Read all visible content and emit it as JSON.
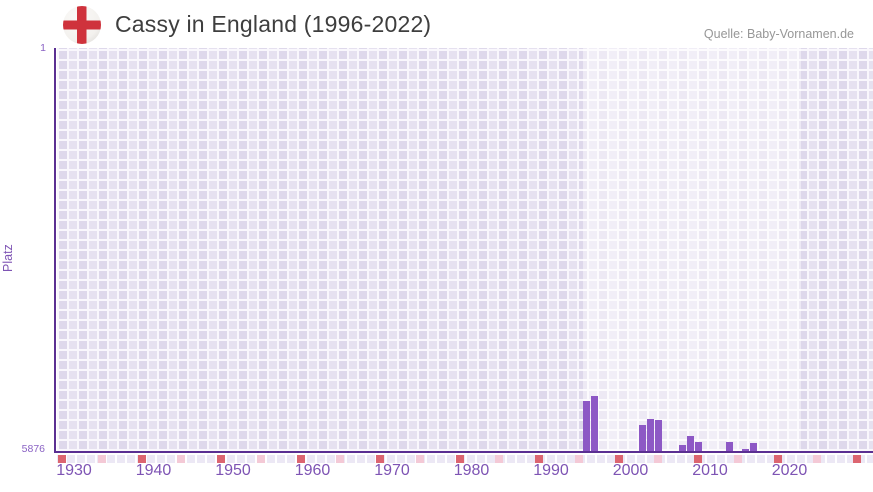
{
  "header": {
    "title": "Cassy in England (1996-2022)",
    "source": "Quelle: Baby-Vornamen.de",
    "flag_icon": "england-flag"
  },
  "chart_data": {
    "type": "bar",
    "title": "Cassy in England (1996-2022)",
    "xlabel": "",
    "ylabel": "Platz",
    "y_axis": {
      "top_label": "1",
      "bottom_label": "5876",
      "min": 1,
      "max": 5876,
      "inverted": true
    },
    "x_ticks": [
      1930,
      1940,
      1950,
      1960,
      1970,
      1980,
      1990,
      2000,
      2010,
      2020
    ],
    "marker_years_major": [
      1930,
      1940,
      1950,
      1960,
      1970,
      1980,
      1990,
      2000,
      2010,
      2020,
      2030
    ],
    "marker_years_minor": [
      1935,
      1945,
      1955,
      1965,
      1975,
      1985,
      1995,
      2005,
      2015,
      2025
    ],
    "highlight_period": {
      "from": 1996,
      "to": 2022
    },
    "points": [
      {
        "year": 1996,
        "rank": 5150
      },
      {
        "year": 1997,
        "rank": 5077
      },
      {
        "year": 2003,
        "rank": 5500
      },
      {
        "year": 2004,
        "rank": 5415
      },
      {
        "year": 2005,
        "rank": 5430
      },
      {
        "year": 2008,
        "rank": 5790
      },
      {
        "year": 2009,
        "rank": 5650
      },
      {
        "year": 2010,
        "rank": 5750
      },
      {
        "year": 2014,
        "rank": 5740
      },
      {
        "year": 2016,
        "rank": 5876
      },
      {
        "year": 2017,
        "rank": 5755
      }
    ],
    "colors": {
      "bar": "#8d58c5",
      "axis_line": "#5b2f92",
      "tick_label": "#7e54b4",
      "y_tick_label": "#8a62c4",
      "marker_decade": "#dc6570",
      "marker_half_decade": "#f4c9d6",
      "grid_cell": "#e6e1f0",
      "title_text": "#3e3e3e",
      "source_text": "#979797",
      "flag_cross_red": "#cf323c"
    }
  }
}
